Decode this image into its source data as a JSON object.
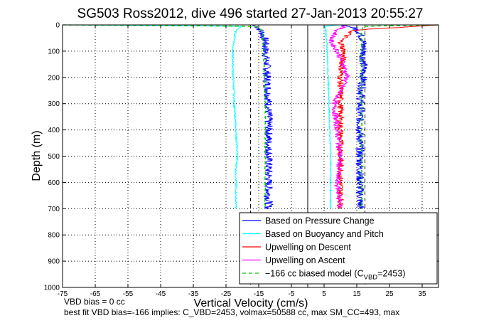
{
  "chart_data": {
    "type": "line",
    "title": "SG503 Ross2012, dive 496 started 27-Jan-2013 20:55:27",
    "xlabel": "Vertical Velocity (cm/s)",
    "ylabel": "Depth (m)",
    "xlim": [
      -75,
      40
    ],
    "ylim": [
      1000,
      0
    ],
    "y_reversed": true,
    "grid": true,
    "x_ticks": [
      "-75",
      "-65",
      "-55",
      "-45",
      "-35",
      "-25",
      "-15",
      "-5",
      "5",
      "15",
      "25",
      "35"
    ],
    "x_tick_values": [
      -75,
      -65,
      -55,
      -45,
      -35,
      -25,
      -15,
      -5,
      5,
      15,
      25,
      35
    ],
    "y_ticks": [
      "0",
      "100",
      "200",
      "300",
      "400",
      "500",
      "600",
      "700",
      "800",
      "900",
      "1000"
    ],
    "y_tick_values": [
      0,
      100,
      200,
      300,
      400,
      500,
      600,
      700,
      800,
      900,
      1000
    ],
    "reference_lines": [
      {
        "x": -17.5,
        "style": "dashed",
        "color": "#000000"
      },
      {
        "x": 0,
        "style": "solid",
        "color": "#000000"
      },
      {
        "x": 17.5,
        "style": "dashed",
        "color": "#000000"
      }
    ],
    "legend": {
      "placement": "bottom-right",
      "entries": [
        {
          "label": "Based on Pressure Change",
          "color": "#0000ff",
          "style": "solid"
        },
        {
          "label": "Based on Buoyancy and Pitch",
          "color": "#00ffff",
          "style": "solid"
        },
        {
          "label": "Upwelling on Descent",
          "color": "#ff0000",
          "style": "solid"
        },
        {
          "label": "Upwelling on Ascent",
          "color": "#ff00ff",
          "style": "solid"
        },
        {
          "label": "−166 cc biased model (C",
          "sub": "VBD",
          "suffix": "=2453)",
          "color": "#00cc00",
          "style": "dashed"
        }
      ]
    },
    "series": [
      {
        "name": "Based on Pressure Change",
        "color": "#0000ff",
        "noise": 1.3,
        "depth": [
          0,
          10,
          30,
          60,
          100,
          150,
          200,
          300,
          400,
          500,
          600,
          700
        ],
        "values": [
          -17,
          -15,
          -14,
          -13,
          -13,
          -12.5,
          -12.5,
          -12,
          -12,
          -12,
          -12,
          -12
        ]
      },
      {
        "name": "Based on Pressure Change",
        "color": "#0000ff",
        "noise": 1.3,
        "depth": [
          0,
          10,
          30,
          60,
          100,
          150,
          200,
          300,
          400,
          500,
          600,
          700
        ],
        "values": [
          10,
          14,
          16,
          17,
          17,
          17,
          17,
          16,
          16,
          16,
          16,
          16
        ]
      },
      {
        "name": "Based on Buoyancy and Pitch",
        "color": "#00ffff",
        "noise": 0.25,
        "depth": [
          0,
          5,
          20,
          100,
          300,
          500,
          550,
          600,
          700
        ],
        "values": [
          -75,
          -20,
          -22,
          -23,
          -22.5,
          -21.5,
          -22,
          -22,
          -22
        ]
      },
      {
        "name": "Based on Buoyancy and Pitch",
        "color": "#00ffff",
        "noise": 0.2,
        "depth": [
          0,
          5,
          20,
          100,
          300,
          500,
          600,
          700
        ],
        "values": [
          10,
          5,
          5.5,
          6,
          6.5,
          7,
          7,
          7
        ]
      },
      {
        "name": "Upwelling on Descent",
        "color": "#ff0000",
        "noise": 1.0,
        "depth": [
          0,
          20,
          60,
          100,
          200,
          300,
          400,
          500,
          600,
          700
        ],
        "values": [
          40,
          14,
          10,
          11,
          10,
          10,
          10,
          10,
          10,
          10
        ]
      },
      {
        "name": "Upwelling on Ascent",
        "color": "#ff00ff",
        "noise": 0.9,
        "depth": [
          0,
          20,
          60,
          100,
          150,
          200,
          300,
          400,
          500,
          600,
          700
        ],
        "values": [
          12,
          9,
          7,
          9,
          11,
          12,
          8,
          9,
          10,
          9,
          10
        ]
      },
      {
        "name": "−166 cc biased model",
        "color": "#00cc00",
        "dashed": true,
        "noise": 0.15,
        "depth": [
          0,
          5,
          20,
          100,
          300,
          500,
          700
        ],
        "values": [
          -75,
          -16,
          -14,
          -13.5,
          -13,
          -13,
          -13
        ]
      },
      {
        "name": "−166 cc biased model",
        "color": "#00cc00",
        "dashed": true,
        "noise": 0.15,
        "depth": [
          0,
          5,
          20,
          100,
          300,
          500,
          700
        ],
        "values": [
          40,
          17,
          16.5,
          16.5,
          16.5,
          16.5,
          16.5
        ]
      }
    ]
  },
  "footnotes": {
    "line1": "VBD bias = 0 cc",
    "line2": "best fit VBD bias=-166 implies: C_VBD=2453, volmax=50588 cc, max SM_CC=493, max"
  }
}
